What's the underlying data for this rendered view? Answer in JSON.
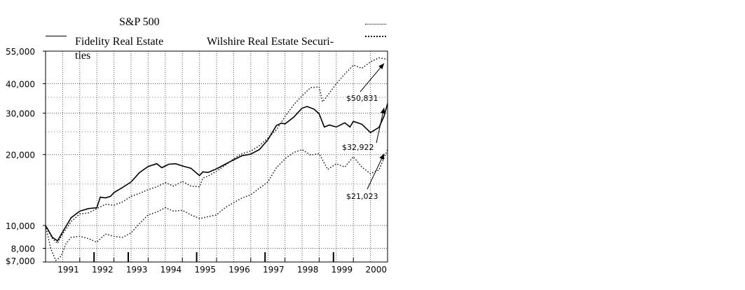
{
  "legend": {
    "sp500": "S&P 500",
    "fidelity": "Fidelity Real Estate",
    "wilshire_line1": "Wilshire Real Estate Securi-",
    "wilshire_line2": "ties"
  },
  "chart_data": {
    "type": "line",
    "title": "",
    "xlabel": "",
    "ylabel": "",
    "y_scale": "log",
    "ylim": [
      7000,
      55000
    ],
    "xlim": [
      1990.0,
      2000.0
    ],
    "grid": true,
    "legend_position": "top",
    "y_ticks": [
      {
        "value": 55000,
        "label": "55,000"
      },
      {
        "value": 40000,
        "label": "40,000"
      },
      {
        "value": 30000,
        "label": "30,000"
      },
      {
        "value": 20000,
        "label": "20,000"
      },
      {
        "value": 10000,
        "label": "10,000"
      },
      {
        "value": 8000,
        "label": "8,000"
      },
      {
        "value": 7000,
        "label": "$7,000"
      }
    ],
    "x_ticks": [
      {
        "value": 1991,
        "label": "1991"
      },
      {
        "value": 1992,
        "label": "1992"
      },
      {
        "value": 1993,
        "label": "1993"
      },
      {
        "value": 1994,
        "label": "1994"
      },
      {
        "value": 1995,
        "label": "1995"
      },
      {
        "value": 1996,
        "label": "1996"
      },
      {
        "value": 1997,
        "label": "1997"
      },
      {
        "value": 1998,
        "label": "1998"
      },
      {
        "value": 1999,
        "label": "1999"
      },
      {
        "value": 2000,
        "label": "2000"
      }
    ],
    "series": [
      {
        "name": "Fidelity Real Estate",
        "style": "solid",
        "x": [
          1990.0,
          1990.2,
          1990.35,
          1990.5,
          1990.75,
          1991.0,
          1991.25,
          1991.5,
          1991.6,
          1991.75,
          1991.9,
          1992.0,
          1992.25,
          1992.5,
          1992.75,
          1993.0,
          1993.25,
          1993.4,
          1993.6,
          1993.8,
          1994.0,
          1994.25,
          1994.5,
          1994.6,
          1994.75,
          1995.0,
          1995.25,
          1995.5,
          1995.75,
          1996.0,
          1996.25,
          1996.5,
          1996.75,
          1996.9,
          1997.0,
          1997.25,
          1997.5,
          1997.65,
          1997.85,
          1998.0,
          1998.15,
          1998.3,
          1998.5,
          1998.75,
          1998.9,
          1999.0,
          1999.25,
          1999.5,
          1999.75,
          1999.9,
          2000.0
        ],
        "y": [
          10000,
          8900,
          8600,
          9400,
          10800,
          11500,
          11800,
          11900,
          13200,
          13100,
          13300,
          13800,
          14500,
          15300,
          16800,
          17800,
          18300,
          17600,
          18200,
          18300,
          17900,
          17500,
          16300,
          16900,
          16800,
          17400,
          18200,
          19000,
          19800,
          20100,
          21000,
          23100,
          26600,
          27200,
          27000,
          28800,
          31500,
          32000,
          31200,
          29800,
          26200,
          26700,
          26200,
          27300,
          26200,
          27700,
          26900,
          24800,
          26100,
          29200,
          32922
        ]
      },
      {
        "name": "Wilshire Real Estate Securities",
        "style": "dotted",
        "x": [
          1990.0,
          1990.2,
          1990.35,
          1990.5,
          1990.75,
          1991.0,
          1991.25,
          1991.5,
          1991.75,
          1992.0,
          1992.25,
          1992.5,
          1992.75,
          1993.0,
          1993.25,
          1993.5,
          1993.75,
          1994.0,
          1994.25,
          1994.5,
          1994.6,
          1994.75,
          1995.0,
          1995.25,
          1995.5,
          1995.75,
          1996.0,
          1996.25,
          1996.5,
          1996.75,
          1997.0,
          1997.25,
          1997.5,
          1997.75,
          1998.0,
          1998.1,
          1998.3,
          1998.5,
          1998.75,
          1999.0,
          1999.25,
          1999.5,
          1999.75,
          2000.0
        ],
        "y": [
          10000,
          8800,
          8400,
          9200,
          10400,
          11200,
          11300,
          11800,
          12300,
          12200,
          12600,
          13300,
          13700,
          14200,
          14600,
          15200,
          14700,
          15400,
          14700,
          14600,
          15900,
          16200,
          17000,
          18000,
          19200,
          20200,
          20700,
          21800,
          23500,
          25500,
          29000,
          32500,
          35500,
          38500,
          38800,
          33500,
          36500,
          40000,
          44000,
          48000,
          46500,
          49500,
          51500,
          50831
        ]
      },
      {
        "name": "S&P 500",
        "style": "dotted",
        "x": [
          1990.0,
          1990.15,
          1990.3,
          1990.45,
          1990.6,
          1990.75,
          1991.0,
          1991.25,
          1991.5,
          1991.75,
          1992.0,
          1992.25,
          1992.5,
          1992.75,
          1993.0,
          1993.25,
          1993.5,
          1993.75,
          1994.0,
          1994.25,
          1994.5,
          1994.75,
          1995.0,
          1995.25,
          1995.5,
          1995.75,
          1996.0,
          1996.25,
          1996.5,
          1996.75,
          1997.0,
          1997.25,
          1997.5,
          1997.75,
          1998.0,
          1998.25,
          1998.5,
          1998.75,
          1999.0,
          1999.25,
          1999.5,
          1999.75,
          2000.0
        ],
        "y": [
          10000,
          8000,
          7100,
          7400,
          8400,
          8900,
          9000,
          8800,
          8500,
          9200,
          9000,
          8900,
          9300,
          10200,
          11100,
          11400,
          11900,
          11500,
          11600,
          11100,
          10700,
          10900,
          11100,
          11900,
          12500,
          13100,
          13500,
          14400,
          15300,
          17600,
          19200,
          20400,
          21000,
          19900,
          20200,
          17300,
          18300,
          17700,
          19600,
          17700,
          16600,
          17200,
          21023
        ]
      }
    ],
    "annotations": [
      {
        "label": "$50,831",
        "series": "Wilshire Real Estate Securities"
      },
      {
        "label": "$32,922",
        "series": "Fidelity Real Estate"
      },
      {
        "label": "$21,023",
        "series": "S&P 500"
      }
    ]
  }
}
